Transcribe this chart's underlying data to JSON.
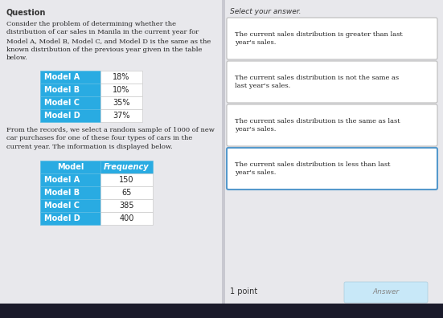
{
  "title": "Question",
  "select_answer_title": "Select your answer.",
  "left_text_lines": [
    "Consider the problem of determining whether the",
    "distribution of car sales in Manila in the current year for",
    "Model A, Model B, Model C, and Model D is the same as the",
    "known distribution of the previous year given in the table",
    "below."
  ],
  "middle_text_lines": [
    "From the records, we select a random sample of 1000 of new",
    "car purchases for one of these four types of cars in the",
    "current year. The information is displayed below."
  ],
  "table1_rows": [
    [
      "Model A",
      "18%"
    ],
    [
      "Model B",
      "10%"
    ],
    [
      "Model C",
      "35%"
    ],
    [
      "Model D",
      "37%"
    ]
  ],
  "table2_headers": [
    "Model",
    "Frequency"
  ],
  "table2_rows": [
    [
      "Model A",
      "150"
    ],
    [
      "Model B",
      "65"
    ],
    [
      "Model C",
      "385"
    ],
    [
      "Model D",
      "400"
    ]
  ],
  "answer_options": [
    "The current sales distribution is greater than last\nyear's sales.",
    "The current sales distribution is not the same as\nlast year's sales.",
    "The current sales distribution is the same as last\nyear's sales.",
    "The current sales distribution is less than last\nyear's sales."
  ],
  "point_text": "1 point",
  "answer_button_text": "Answer",
  "header_color": "#29ABE2",
  "header_text_color": "#FFFFFF",
  "bg_color": "#C8C8D0",
  "content_bg": "#E8E8EC",
  "white": "#FFFFFF",
  "option_border_normal": "#BBBBBB",
  "option_border_selected": "#5599CC",
  "answer_btn_color": "#C8E8F8",
  "answer_btn_text_color": "#888888"
}
